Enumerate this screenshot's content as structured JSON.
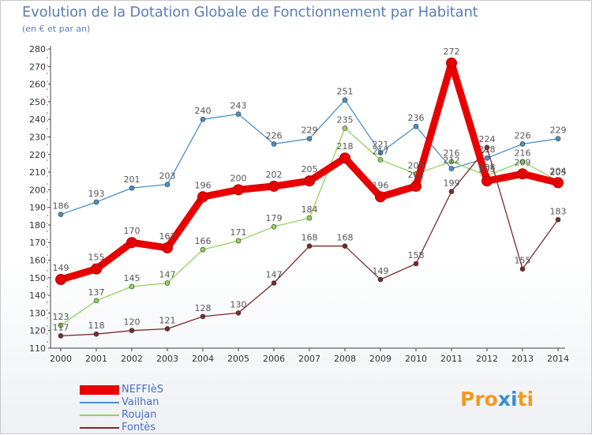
{
  "header": {
    "title": "Evolution de la Dotation Globale de Fonctionnement par Habitant",
    "subtitle": "(en € et par an)"
  },
  "brand": {
    "text": "Proxiti"
  },
  "chart_data": {
    "type": "line",
    "title": "Evolution de la Dotation Globale de Fonctionnement par Habitant",
    "subtitle": "(en € et par an)",
    "xlabel": "",
    "ylabel": "",
    "x": [
      2000,
      2001,
      2002,
      2003,
      2004,
      2005,
      2006,
      2007,
      2008,
      2009,
      2010,
      2011,
      2012,
      2013,
      2014
    ],
    "ylim": [
      110,
      280
    ],
    "yticks": [
      110,
      120,
      130,
      140,
      150,
      160,
      170,
      180,
      190,
      200,
      210,
      220,
      230,
      240,
      250,
      260,
      270,
      280
    ],
    "grid": false,
    "legend_position": "bottom-left",
    "series": [
      {
        "name": "NEFFIèS",
        "color": "#e80000",
        "values": [
          149,
          155,
          170,
          167,
          196,
          200,
          202,
          205,
          218,
          196,
          202,
          272,
          205,
          209,
          204
        ]
      },
      {
        "name": "Vailhan",
        "color": "#4a90c8",
        "values": [
          186,
          193,
          201,
          203,
          240,
          243,
          226,
          229,
          251,
          221,
          236,
          212,
          218,
          226,
          229
        ]
      },
      {
        "name": "Roujan",
        "color": "#8fd45a",
        "values": [
          123,
          137,
          145,
          147,
          166,
          171,
          179,
          184,
          235,
          217,
          209,
          216,
          208,
          216,
          205
        ]
      },
      {
        "name": "Fontès",
        "color": "#7a2a2a",
        "values": [
          117,
          118,
          120,
          121,
          128,
          130,
          147,
          168,
          168,
          149,
          158,
          199,
          224,
          155,
          183
        ]
      }
    ]
  }
}
